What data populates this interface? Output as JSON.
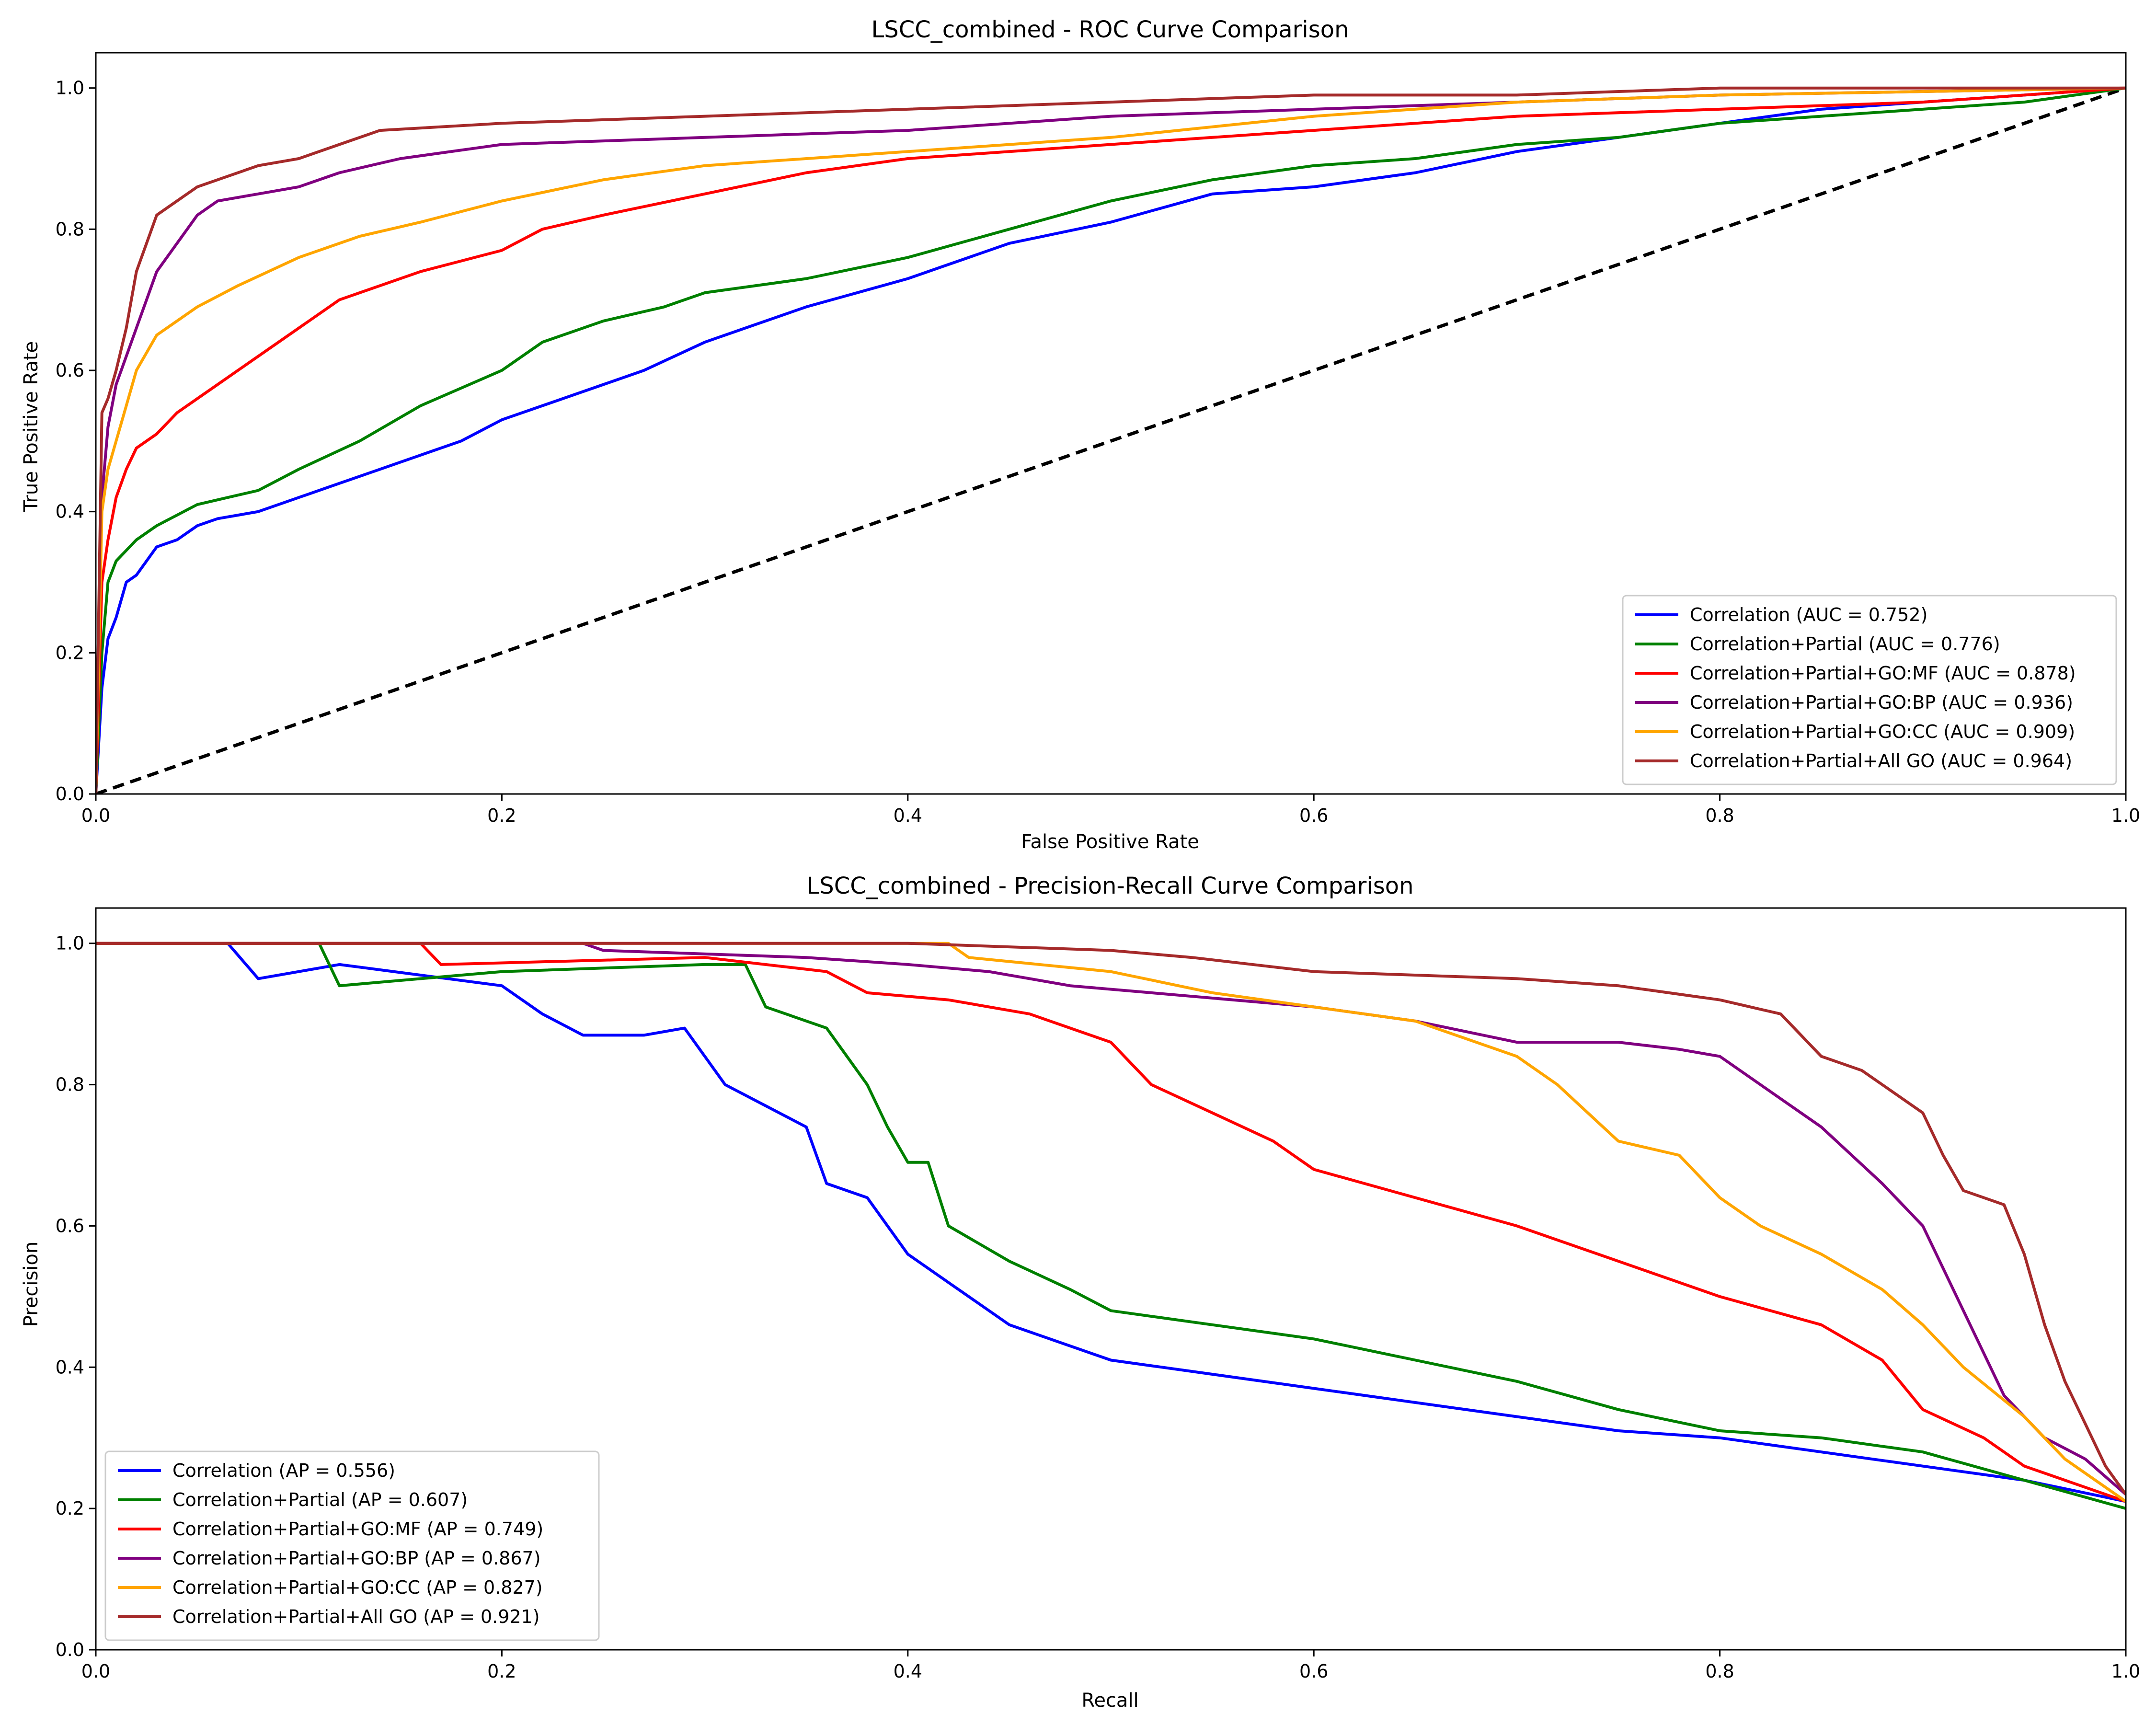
{
  "chart_data": [
    {
      "type": "line",
      "title": "LSCC_combined - ROC Curve Comparison",
      "xlabel": "False Positive Rate",
      "ylabel": "True Positive Rate",
      "xlim": [
        0,
        1
      ],
      "ylim": [
        0,
        1.05
      ],
      "xticks": [
        "0.0",
        "0.2",
        "0.4",
        "0.6",
        "0.8",
        "1.0"
      ],
      "yticks": [
        "0.0",
        "0.2",
        "0.4",
        "0.6",
        "0.8",
        "1.0"
      ],
      "grid": false,
      "legend_position": "lower-right",
      "reference_line": {
        "style": "dashed",
        "color": "#000000",
        "x": [
          0,
          1
        ],
        "y": [
          0,
          1
        ]
      },
      "series": [
        {
          "name": "Correlation (AUC = 0.752)",
          "color": "#0000ff",
          "x": [
            0,
            0.003,
            0.006,
            0.01,
            0.015,
            0.02,
            0.025,
            0.03,
            0.04,
            0.05,
            0.06,
            0.08,
            0.1,
            0.12,
            0.14,
            0.16,
            0.18,
            0.2,
            0.25,
            0.27,
            0.3,
            0.32,
            0.35,
            0.4,
            0.42,
            0.45,
            0.5,
            0.55,
            0.6,
            0.65,
            0.7,
            0.75,
            0.8,
            0.85,
            0.9,
            0.95,
            1.0
          ],
          "y": [
            0,
            0.15,
            0.22,
            0.25,
            0.3,
            0.31,
            0.33,
            0.35,
            0.36,
            0.38,
            0.39,
            0.4,
            0.42,
            0.44,
            0.46,
            0.48,
            0.5,
            0.53,
            0.58,
            0.6,
            0.64,
            0.66,
            0.69,
            0.73,
            0.75,
            0.78,
            0.81,
            0.85,
            0.86,
            0.88,
            0.91,
            0.93,
            0.95,
            0.97,
            0.98,
            0.99,
            1.0
          ]
        },
        {
          "name": "Correlation+Partial (AUC = 0.776)",
          "color": "#008000",
          "x": [
            0,
            0.003,
            0.006,
            0.01,
            0.02,
            0.03,
            0.05,
            0.08,
            0.1,
            0.13,
            0.16,
            0.2,
            0.22,
            0.25,
            0.28,
            0.3,
            0.35,
            0.4,
            0.45,
            0.5,
            0.55,
            0.6,
            0.65,
            0.7,
            0.75,
            0.8,
            0.85,
            0.9,
            0.95,
            1.0
          ],
          "y": [
            0,
            0.2,
            0.3,
            0.33,
            0.36,
            0.38,
            0.41,
            0.43,
            0.46,
            0.5,
            0.55,
            0.6,
            0.64,
            0.67,
            0.69,
            0.71,
            0.73,
            0.76,
            0.8,
            0.84,
            0.87,
            0.89,
            0.9,
            0.92,
            0.93,
            0.95,
            0.96,
            0.97,
            0.98,
            1.0
          ]
        },
        {
          "name": "Correlation+Partial+GO:MF (AUC = 0.878)",
          "color": "#ff0000",
          "x": [
            0,
            0.003,
            0.006,
            0.01,
            0.015,
            0.02,
            0.03,
            0.04,
            0.05,
            0.06,
            0.08,
            0.1,
            0.12,
            0.14,
            0.16,
            0.2,
            0.22,
            0.25,
            0.3,
            0.35,
            0.4,
            0.45,
            0.5,
            0.55,
            0.6,
            0.7,
            0.8,
            0.9,
            1.0
          ],
          "y": [
            0,
            0.3,
            0.36,
            0.42,
            0.46,
            0.49,
            0.51,
            0.54,
            0.56,
            0.58,
            0.62,
            0.66,
            0.7,
            0.72,
            0.74,
            0.77,
            0.8,
            0.82,
            0.85,
            0.88,
            0.9,
            0.91,
            0.92,
            0.93,
            0.94,
            0.96,
            0.97,
            0.98,
            1.0
          ]
        },
        {
          "name": "Correlation+Partial+GO:BP (AUC = 0.936)",
          "color": "#800080",
          "x": [
            0,
            0.003,
            0.006,
            0.01,
            0.015,
            0.02,
            0.025,
            0.03,
            0.04,
            0.05,
            0.06,
            0.08,
            0.1,
            0.12,
            0.15,
            0.2,
            0.3,
            0.4,
            0.5,
            0.6,
            0.7,
            0.8,
            0.9,
            1.0
          ],
          "y": [
            0,
            0.42,
            0.52,
            0.58,
            0.62,
            0.66,
            0.7,
            0.74,
            0.78,
            0.82,
            0.84,
            0.85,
            0.86,
            0.88,
            0.9,
            0.92,
            0.93,
            0.94,
            0.96,
            0.97,
            0.98,
            0.99,
            0.995,
            1.0
          ]
        },
        {
          "name": "Correlation+Partial+GO:CC (AUC = 0.909)",
          "color": "#ffa500",
          "x": [
            0,
            0.003,
            0.006,
            0.01,
            0.015,
            0.02,
            0.03,
            0.04,
            0.05,
            0.07,
            0.1,
            0.13,
            0.16,
            0.2,
            0.25,
            0.3,
            0.4,
            0.5,
            0.6,
            0.7,
            0.8,
            0.9,
            1.0
          ],
          "y": [
            0,
            0.4,
            0.46,
            0.5,
            0.55,
            0.6,
            0.65,
            0.67,
            0.69,
            0.72,
            0.76,
            0.79,
            0.81,
            0.84,
            0.87,
            0.89,
            0.91,
            0.93,
            0.96,
            0.98,
            0.99,
            0.995,
            1.0
          ]
        },
        {
          "name": "Correlation+Partial+All GO (AUC = 0.964)",
          "color": "#a52a2a",
          "x": [
            0,
            0.003,
            0.006,
            0.01,
            0.015,
            0.02,
            0.025,
            0.03,
            0.04,
            0.05,
            0.06,
            0.08,
            0.1,
            0.12,
            0.14,
            0.2,
            0.3,
            0.4,
            0.5,
            0.6,
            0.7,
            0.8,
            0.9,
            1.0
          ],
          "y": [
            0,
            0.54,
            0.56,
            0.6,
            0.66,
            0.74,
            0.78,
            0.82,
            0.84,
            0.86,
            0.87,
            0.89,
            0.9,
            0.92,
            0.94,
            0.95,
            0.96,
            0.97,
            0.98,
            0.99,
            0.99,
            1.0,
            1.0,
            1.0
          ]
        }
      ]
    },
    {
      "type": "line",
      "title": "LSCC_combined - Precision-Recall Curve Comparison",
      "xlabel": "Recall",
      "ylabel": "Precision",
      "xlim": [
        0,
        1
      ],
      "ylim": [
        0,
        1.05
      ],
      "xticks": [
        "0.0",
        "0.2",
        "0.4",
        "0.6",
        "0.8",
        "1.0"
      ],
      "yticks": [
        "0.0",
        "0.2",
        "0.4",
        "0.6",
        "0.8",
        "1.0"
      ],
      "grid": false,
      "legend_position": "lower-left",
      "series": [
        {
          "name": "Correlation (AP = 0.556)",
          "color": "#0000ff",
          "x": [
            0,
            0.065,
            0.08,
            0.12,
            0.2,
            0.22,
            0.24,
            0.27,
            0.29,
            0.31,
            0.33,
            0.35,
            0.36,
            0.38,
            0.4,
            0.42,
            0.45,
            0.5,
            0.55,
            0.6,
            0.65,
            0.7,
            0.75,
            0.8,
            0.85,
            0.9,
            0.95,
            1.0
          ],
          "y": [
            1.0,
            1.0,
            0.95,
            0.97,
            0.94,
            0.9,
            0.87,
            0.87,
            0.88,
            0.8,
            0.77,
            0.74,
            0.66,
            0.64,
            0.56,
            0.52,
            0.46,
            0.41,
            0.39,
            0.37,
            0.35,
            0.33,
            0.31,
            0.3,
            0.28,
            0.26,
            0.24,
            0.21
          ]
        },
        {
          "name": "Correlation+Partial (AP = 0.607)",
          "color": "#008000",
          "x": [
            0,
            0.11,
            0.12,
            0.2,
            0.3,
            0.32,
            0.33,
            0.36,
            0.38,
            0.39,
            0.4,
            0.41,
            0.42,
            0.45,
            0.48,
            0.5,
            0.55,
            0.6,
            0.65,
            0.7,
            0.75,
            0.8,
            0.85,
            0.9,
            0.95,
            1.0
          ],
          "y": [
            1.0,
            1.0,
            0.94,
            0.96,
            0.97,
            0.97,
            0.91,
            0.88,
            0.8,
            0.74,
            0.69,
            0.69,
            0.6,
            0.55,
            0.51,
            0.48,
            0.46,
            0.44,
            0.41,
            0.38,
            0.34,
            0.31,
            0.3,
            0.28,
            0.24,
            0.2
          ]
        },
        {
          "name": "Correlation+Partial+GO:MF (AP = 0.749)",
          "color": "#ff0000",
          "x": [
            0,
            0.16,
            0.17,
            0.3,
            0.36,
            0.38,
            0.42,
            0.46,
            0.5,
            0.52,
            0.55,
            0.58,
            0.6,
            0.65,
            0.7,
            0.75,
            0.8,
            0.85,
            0.88,
            0.9,
            0.93,
            0.95,
            1.0
          ],
          "y": [
            1.0,
            1.0,
            0.97,
            0.98,
            0.96,
            0.93,
            0.92,
            0.9,
            0.86,
            0.8,
            0.76,
            0.72,
            0.68,
            0.64,
            0.6,
            0.55,
            0.5,
            0.46,
            0.41,
            0.34,
            0.3,
            0.26,
            0.21
          ]
        },
        {
          "name": "Correlation+Partial+GO:BP (AP = 0.867)",
          "color": "#800080",
          "x": [
            0,
            0.24,
            0.25,
            0.35,
            0.4,
            0.44,
            0.48,
            0.52,
            0.6,
            0.65,
            0.7,
            0.75,
            0.78,
            0.8,
            0.82,
            0.85,
            0.88,
            0.9,
            0.92,
            0.94,
            0.96,
            0.98,
            1.0
          ],
          "y": [
            1.0,
            1.0,
            0.99,
            0.98,
            0.97,
            0.96,
            0.94,
            0.93,
            0.91,
            0.89,
            0.86,
            0.86,
            0.85,
            0.84,
            0.8,
            0.74,
            0.66,
            0.6,
            0.48,
            0.36,
            0.3,
            0.27,
            0.22
          ]
        },
        {
          "name": "Correlation+Partial+GO:CC (AP = 0.827)",
          "color": "#ffa500",
          "x": [
            0,
            0.42,
            0.43,
            0.5,
            0.55,
            0.6,
            0.65,
            0.7,
            0.72,
            0.75,
            0.78,
            0.8,
            0.82,
            0.85,
            0.88,
            0.9,
            0.92,
            0.95,
            0.97,
            1.0
          ],
          "y": [
            1.0,
            1.0,
            0.98,
            0.96,
            0.93,
            0.91,
            0.89,
            0.84,
            0.8,
            0.72,
            0.7,
            0.64,
            0.6,
            0.56,
            0.51,
            0.46,
            0.4,
            0.33,
            0.27,
            0.21
          ]
        },
        {
          "name": "Correlation+Partial+All GO (AP = 0.921)",
          "color": "#a52a2a",
          "x": [
            0,
            0.4,
            0.5,
            0.54,
            0.6,
            0.7,
            0.75,
            0.8,
            0.83,
            0.85,
            0.87,
            0.9,
            0.91,
            0.92,
            0.94,
            0.95,
            0.96,
            0.97,
            0.98,
            0.99,
            1.0
          ],
          "y": [
            1.0,
            1.0,
            0.99,
            0.98,
            0.96,
            0.95,
            0.94,
            0.92,
            0.9,
            0.84,
            0.82,
            0.76,
            0.7,
            0.65,
            0.63,
            0.56,
            0.46,
            0.38,
            0.32,
            0.26,
            0.22
          ]
        }
      ]
    }
  ]
}
